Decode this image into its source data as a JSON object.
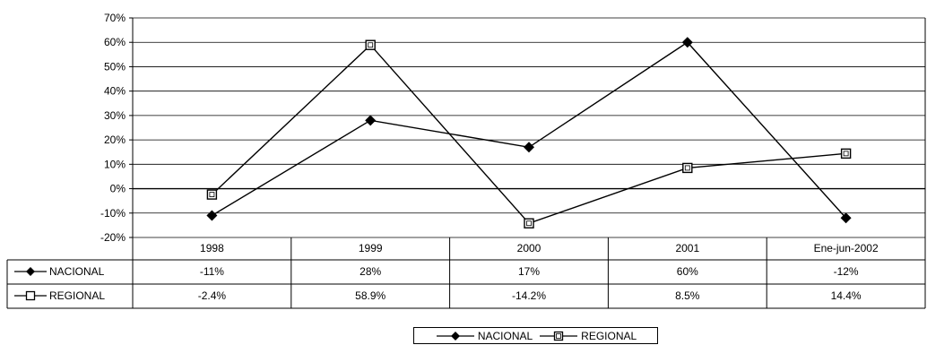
{
  "chart_data": {
    "type": "line",
    "categories": [
      "1998",
      "1999",
      "2000",
      "2001",
      "Ene-jun-2002"
    ],
    "series": [
      {
        "name": "NACIONAL",
        "marker": "diamond",
        "values": [
          -11,
          28,
          17,
          60,
          -12
        ],
        "labels": [
          "-11%",
          "28%",
          "17%",
          "60%",
          "-12%"
        ]
      },
      {
        "name": "REGIONAL",
        "marker": "square",
        "values": [
          -2.4,
          58.9,
          -14.2,
          8.5,
          14.4
        ],
        "labels": [
          "-2.4%",
          "58.9%",
          "-14.2%",
          "8.5%",
          "14.4%"
        ]
      }
    ],
    "ylim": [
      -20,
      70
    ],
    "yticks": [
      -20,
      -10,
      0,
      10,
      20,
      30,
      40,
      50,
      60,
      70
    ],
    "ytick_labels": [
      "-20%",
      "-10%",
      "0%",
      "10%",
      "20%",
      "30%",
      "40%",
      "50%",
      "60%",
      "70%"
    ],
    "grid": true,
    "data_table": true,
    "legend": "bottom-center",
    "colors": {
      "line": "#000000",
      "grid": "#000000",
      "marker_fill_square": "#ffffff"
    }
  }
}
